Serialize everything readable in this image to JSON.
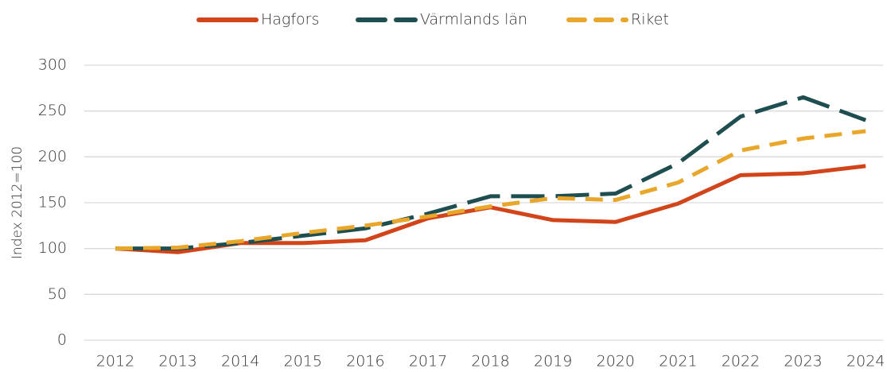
{
  "chart_data": {
    "type": "line",
    "ylabel": "Index 2012=100",
    "categories": [
      "2012",
      "2013",
      "2014",
      "2015",
      "2016",
      "2017",
      "2018",
      "2019",
      "2020",
      "2021",
      "2022",
      "2023",
      "2024"
    ],
    "series": [
      {
        "name": "Hagfors",
        "color": "#d2441a",
        "dash": "solid",
        "values": [
          100,
          96,
          106,
          106,
          109,
          133,
          145,
          131,
          129,
          149,
          180,
          182,
          190
        ]
      },
      {
        "name": "Värmlands län",
        "color": "#1f4e50",
        "dash": "long",
        "values": [
          100,
          100,
          106,
          114,
          122,
          138,
          157,
          157,
          160,
          193,
          244,
          265,
          240
        ]
      },
      {
        "name": "Riket",
        "color": "#e8a62a",
        "dash": "short",
        "values": [
          100,
          101,
          108,
          117,
          125,
          135,
          146,
          155,
          153,
          172,
          207,
          220,
          228
        ]
      }
    ],
    "ylim": [
      0,
      300
    ],
    "yticks": [
      0,
      50,
      100,
      150,
      200,
      250,
      300
    ],
    "grid": true,
    "legend": "top"
  }
}
